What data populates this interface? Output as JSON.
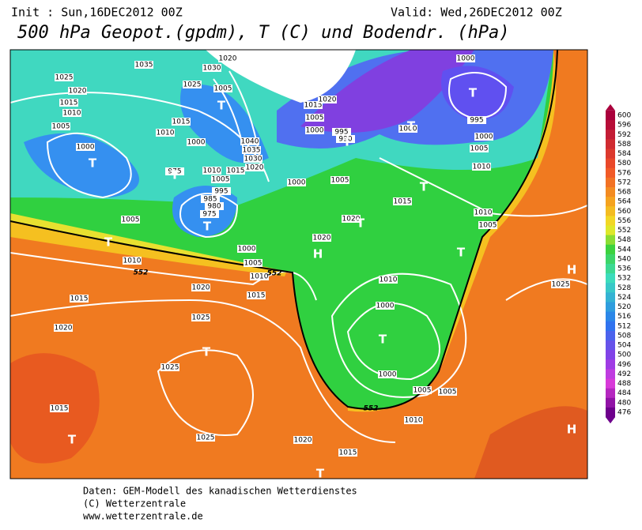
{
  "header": {
    "init": "Init : Sun,16DEC2012 00Z",
    "valid": "Valid: Wed,26DEC2012 00Z",
    "title": "500 hPa Geopot.(gpdm), T (C) und Bodendr. (hPa)"
  },
  "isobar_labels": [
    "1035",
    "1025",
    "1020",
    "1015",
    "1010",
    "1005",
    "1000",
    "1030",
    "1025",
    "1005",
    "1015",
    "1010",
    "1000",
    "975",
    "1010",
    "1015",
    "1005",
    "995",
    "985",
    "980",
    "975",
    "1005",
    "1040",
    "1035",
    "1030",
    "1020",
    "1000",
    "1005",
    "1015",
    "1020",
    "1020",
    "1000",
    "1005",
    "1010",
    "1010",
    "1020",
    "1015",
    "1015",
    "1020",
    "1025",
    "1025",
    "1015",
    "1025",
    "1020",
    "1015",
    "1010",
    "1005",
    "1005",
    "1000",
    "1000",
    "1010",
    "1010",
    "1005",
    "1025",
    "1010",
    "1005",
    "1000",
    "995",
    "1000",
    "1015",
    "1020",
    "1005",
    "1000",
    "1000",
    "995",
    "990",
    "1020"
  ],
  "contour_labels": [
    "552",
    "552",
    "552"
  ],
  "pressure_centers": [
    "T",
    "T",
    "T",
    "T",
    "T",
    "T",
    "T",
    "T",
    "T",
    "T",
    "T",
    "T",
    "T",
    "T",
    "T",
    "H",
    "H",
    "H"
  ],
  "colorbar": {
    "labels": [
      600,
      596,
      592,
      588,
      584,
      580,
      576,
      572,
      568,
      564,
      560,
      556,
      552,
      548,
      544,
      540,
      536,
      532,
      528,
      524,
      520,
      516,
      512,
      508,
      504,
      500,
      496,
      492,
      488,
      484,
      480,
      476
    ]
  },
  "footer": [
    "Daten: GEM-Modell des kanadischen Wetterdienstes",
    "(C) Wetterzentrale",
    "www.wetterzentrale.de"
  ]
}
